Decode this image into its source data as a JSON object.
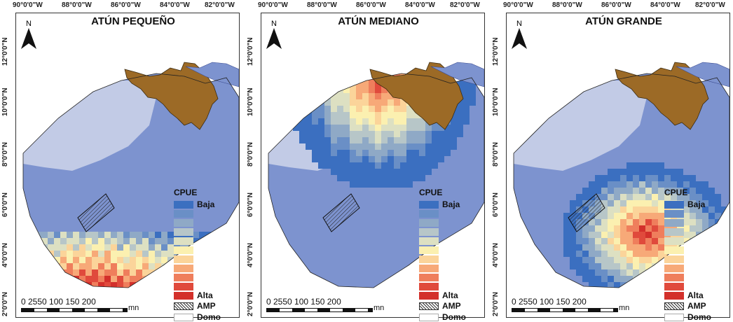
{
  "lon_labels": [
    "90°0'0\"W",
    "88°0'0\"W",
    "86°0'0\"W",
    "84°0'0\"W",
    "82°0'0\"W"
  ],
  "lat_labels": [
    "12°0'0\"N",
    "10°0'0\"N",
    "8°0'0\"N",
    "6°0'0\"N",
    "4°0'0\"N",
    "2°0'0\"N"
  ],
  "north_label": "N",
  "scale": {
    "ticks": "0 2550   100  150  200",
    "unit": "mn"
  },
  "legend": {
    "title": "CPUE",
    "low_label": "Baja",
    "high_label": "Alta",
    "amp_label": "AMP",
    "domo_label": "Domo",
    "ramp_colors": [
      "#3b6fc0",
      "#6a8fc6",
      "#8fa9c6",
      "#b7c6c8",
      "#dde0c2",
      "#fbf0b0",
      "#fbd49a",
      "#f7a978",
      "#ef7e5c",
      "#e04a3c",
      "#d3302b"
    ]
  },
  "colors": {
    "land": "#9c6a26",
    "sea": "#7d93cf",
    "domo": "#d9deee"
  },
  "panels": [
    {
      "title": "ATÚN PEQUEÑO",
      "hotspot": "south"
    },
    {
      "title": "ATÚN MEDIANO",
      "hotspot": "north"
    },
    {
      "title": "ATÚN GRANDE",
      "hotspot": "east"
    }
  ]
}
